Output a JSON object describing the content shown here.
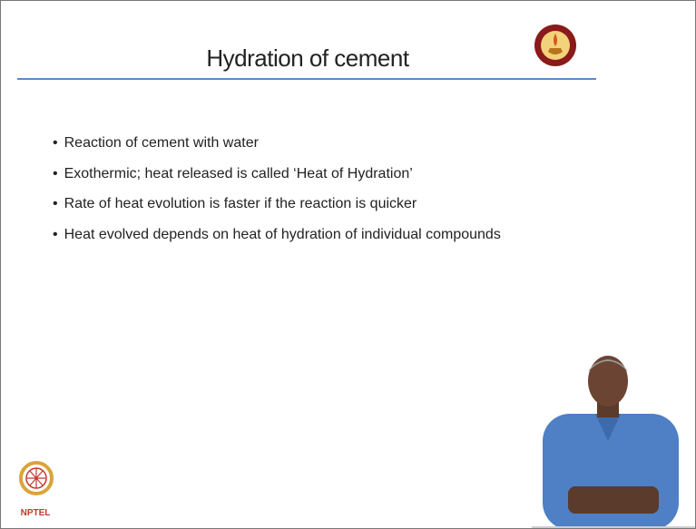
{
  "header": {
    "title": "Hydration of cement"
  },
  "body": {
    "bullets": [
      "Reaction of cement with water",
      "Exothermic; heat released is called ‘Heat of Hydration’",
      "Rate of heat evolution is faster if the reaction is quicker",
      "Heat evolved depends on heat of hydration of individual compounds"
    ]
  },
  "footer": {
    "logo_text": "NPTEL"
  }
}
